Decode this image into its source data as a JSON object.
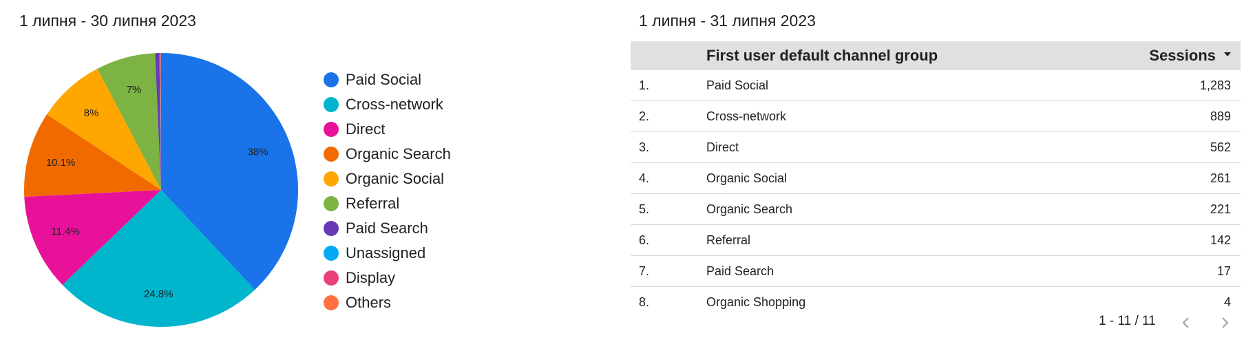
{
  "left_panel": {
    "date_range": "1 липня - 30 липня 2023"
  },
  "right_panel": {
    "date_range": "1 липня - 31 липня 2023"
  },
  "chart_data": {
    "type": "pie",
    "slices": [
      {
        "name": "Paid Social",
        "value": 38,
        "label": "38%",
        "color": "#1a73e8"
      },
      {
        "name": "Cross-network",
        "value": 24.8,
        "label": "24.8%",
        "color": "#00b5cc"
      },
      {
        "name": "Direct",
        "value": 11.4,
        "label": "11.4%",
        "color": "#e8129a"
      },
      {
        "name": "Organic Search",
        "value": 10.1,
        "label": "10.1%",
        "color": "#f06a00"
      },
      {
        "name": "Organic Social",
        "value": 8,
        "label": "8%",
        "color": "#ffa600"
      },
      {
        "name": "Referral",
        "value": 7,
        "label": "7%",
        "color": "#7cb342"
      },
      {
        "name": "Paid Search",
        "value": 0.5,
        "label": "",
        "color": "#673ab7"
      },
      {
        "name": "Unassigned",
        "value": 0.1,
        "label": "",
        "color": "#03a9f4"
      },
      {
        "name": "Display",
        "value": 0.05,
        "label": "",
        "color": "#ec407a"
      },
      {
        "name": "Others",
        "value": 0.05,
        "label": "",
        "color": "#ff7043"
      }
    ],
    "legend_position": "right"
  },
  "table": {
    "columns": {
      "channel": "First user default channel group",
      "sessions": "Sessions"
    },
    "rows": [
      {
        "idx": "1.",
        "name": "Paid Social",
        "value": "1,283"
      },
      {
        "idx": "2.",
        "name": "Cross-network",
        "value": "889"
      },
      {
        "idx": "3.",
        "name": "Direct",
        "value": "562"
      },
      {
        "idx": "4.",
        "name": "Organic Social",
        "value": "261"
      },
      {
        "idx": "5.",
        "name": "Organic Search",
        "value": "221"
      },
      {
        "idx": "6.",
        "name": "Referral",
        "value": "142"
      },
      {
        "idx": "7.",
        "name": "Paid Search",
        "value": "17"
      },
      {
        "idx": "8.",
        "name": "Organic Shopping",
        "value": "4"
      }
    ],
    "pagination": "1 - 11 / 11"
  }
}
